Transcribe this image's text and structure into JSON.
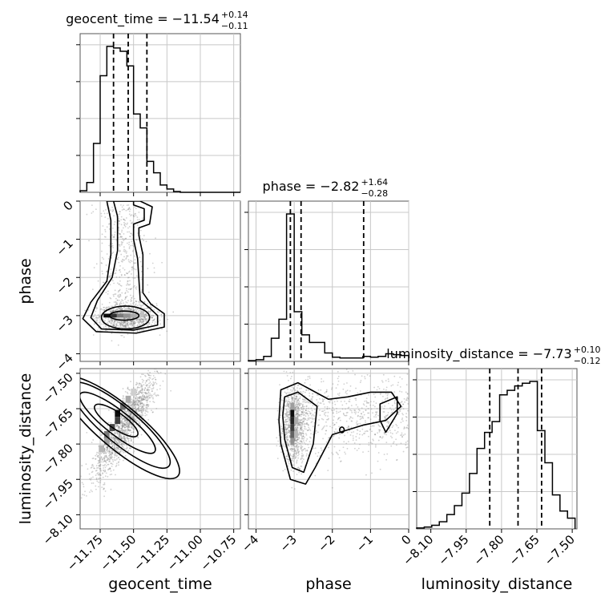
{
  "chart_data": {
    "type": "corner",
    "parameters": [
      {
        "name": "geocent_time",
        "label": "geocent_time",
        "range": [
          -11.9,
          -10.7
        ],
        "ticks": [
          -11.75,
          -11.5,
          -11.25,
          -11.0,
          -10.75
        ],
        "tick_labels": [
          "−11.75",
          "−11.50",
          "−11.25",
          "−11.00",
          "−10.75"
        ],
        "title_main": "geocent_time = −11.54",
        "title_sup": "+0.14",
        "title_sub": "−0.11",
        "quantiles": [
          -11.65,
          -11.54,
          -11.4
        ],
        "histogram": {
          "bin_edges": [
            -11.9,
            -11.85,
            -11.8,
            -11.75,
            -11.7,
            -11.65,
            -11.6,
            -11.55,
            -11.5,
            -11.45,
            -11.4,
            -11.35,
            -11.3,
            -11.25,
            -11.2,
            -11.15,
            -11.1,
            -11.05,
            -11.0,
            -10.95,
            -10.9,
            -10.85,
            -10.8,
            -10.75,
            -10.7
          ],
          "counts": [
            2,
            12,
            60,
            143,
            179,
            177,
            173,
            155,
            96,
            79,
            38,
            24,
            9,
            4,
            1,
            0,
            0,
            0,
            0,
            0,
            0,
            0,
            0,
            0
          ]
        }
      },
      {
        "name": "phase",
        "label": "phase",
        "range": [
          -4.2,
          0
        ],
        "ticks": [
          -4,
          -3,
          -2,
          -1,
          0
        ],
        "tick_labels": [
          "−4",
          "−3",
          "−2",
          "−1",
          "0"
        ],
        "title_main": "phase = −2.82",
        "title_sup": "+1.64",
        "title_sub": "−0.28",
        "quantiles": [
          -3.1,
          -2.82,
          -1.18
        ],
        "histogram": {
          "bin_edges": [
            -4.2,
            -4.0,
            -3.8,
            -3.6,
            -3.4,
            -3.2,
            -3.0,
            -2.8,
            -2.6,
            -2.4,
            -2.2,
            -2.0,
            -1.8,
            -1.6,
            -1.4,
            -1.2,
            -1.0,
            -0.8,
            -0.6,
            -0.4,
            -0.2,
            0.0
          ],
          "counts": [
            2,
            4,
            12,
            55,
            100,
            350,
            118,
            63,
            45,
            45,
            20,
            10,
            8,
            8,
            8,
            12,
            10,
            12,
            18,
            16,
            14
          ]
        }
      },
      {
        "name": "luminosity_distance",
        "label": "luminosity_distance",
        "range": [
          -8.16,
          -7.48
        ],
        "ticks": [
          -8.1,
          -7.95,
          -7.8,
          -7.65,
          -7.5
        ],
        "tick_labels": [
          "−8.10",
          "−7.95",
          "−7.80",
          "−7.65",
          "−7.50"
        ],
        "title_main": "luminosity_distance = −7.73",
        "title_sup": "+0.10",
        "title_sub": "−0.12",
        "quantiles": [
          -7.85,
          -7.73,
          -7.63
        ],
        "histogram": {
          "bin_edges": [
            -8.16,
            -8.128,
            -8.096,
            -8.064,
            -8.032,
            -8.0,
            -7.968,
            -7.936,
            -7.904,
            -7.872,
            -7.84,
            -7.808,
            -7.776,
            -7.744,
            -7.712,
            -7.68,
            -7.648,
            -7.616,
            -7.584,
            -7.552,
            -7.52,
            -7.488
          ],
          "counts": [
            1,
            2,
            4,
            8,
            16,
            26,
            40,
            62,
            90,
            108,
            120,
            150,
            155,
            160,
            163,
            165,
            110,
            74,
            38,
            20,
            12
          ]
        }
      }
    ],
    "joint_2d": [
      {
        "x": "geocent_time",
        "y": "phase",
        "density": [
          {
            "x": -11.7,
            "y": -3.0,
            "v": 1.0
          },
          {
            "x": -11.65,
            "y": -3.0,
            "v": 0.85
          },
          {
            "x": -11.6,
            "y": -3.0,
            "v": 0.55
          },
          {
            "x": -11.55,
            "y": -3.0,
            "v": 0.45
          },
          {
            "x": -11.5,
            "y": -3.0,
            "v": 0.35
          },
          {
            "x": -11.45,
            "y": -3.0,
            "v": 0.25
          },
          {
            "x": -11.6,
            "y": -3.1,
            "v": 0.2
          },
          {
            "x": -11.55,
            "y": -2.9,
            "v": 0.2
          }
        ]
      },
      {
        "x": "geocent_time",
        "y": "luminosity_distance",
        "density": [
          {
            "x": -11.62,
            "y": -7.67,
            "v": 1.0
          },
          {
            "x": -11.62,
            "y": -7.7,
            "v": 0.8
          },
          {
            "x": -11.66,
            "y": -7.73,
            "v": 0.75
          },
          {
            "x": -11.58,
            "y": -7.64,
            "v": 0.6
          },
          {
            "x": -11.7,
            "y": -7.76,
            "v": 0.55
          },
          {
            "x": -11.7,
            "y": -7.79,
            "v": 0.4
          },
          {
            "x": -11.74,
            "y": -7.82,
            "v": 0.3
          },
          {
            "x": -11.54,
            "y": -7.61,
            "v": 0.35
          },
          {
            "x": -11.5,
            "y": -7.58,
            "v": 0.2
          }
        ]
      },
      {
        "x": "phase",
        "y": "luminosity_distance",
        "density": [
          {
            "x": -3.05,
            "y": -7.67,
            "v": 1.0
          },
          {
            "x": -3.05,
            "y": -7.7,
            "v": 0.9
          },
          {
            "x": -3.05,
            "y": -7.73,
            "v": 0.8
          },
          {
            "x": -3.05,
            "y": -7.76,
            "v": 0.65
          },
          {
            "x": -3.05,
            "y": -7.79,
            "v": 0.45
          },
          {
            "x": -2.95,
            "y": -7.7,
            "v": 0.35
          },
          {
            "x": -2.95,
            "y": -7.76,
            "v": 0.3
          },
          {
            "x": -3.05,
            "y": -7.64,
            "v": 0.4
          }
        ]
      }
    ],
    "grid": true,
    "quantile_style": "dashed"
  }
}
